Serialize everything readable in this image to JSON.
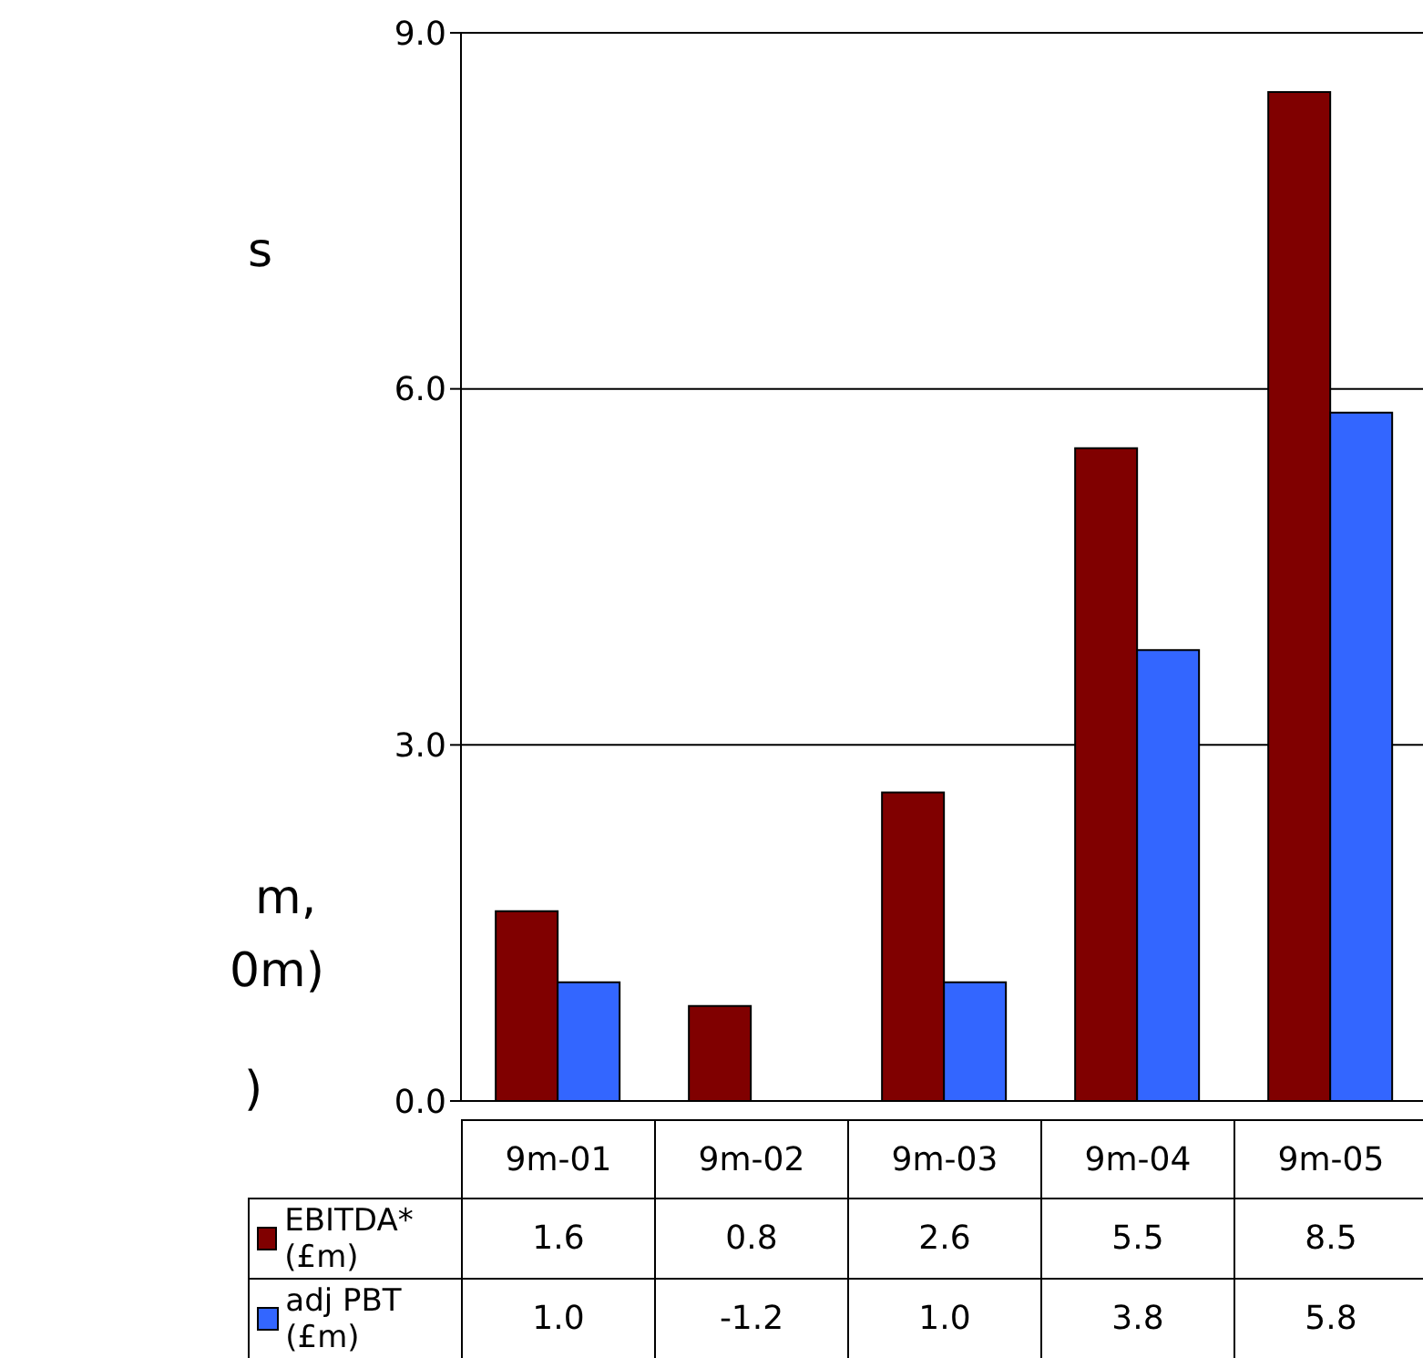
{
  "chart_data": {
    "type": "bar",
    "categories": [
      "9m-01",
      "9m-02",
      "9m-03",
      "9m-04",
      "9m-05"
    ],
    "series": [
      {
        "name": "EBITDA* (£m)",
        "color": "#800000",
        "values": [
          1.6,
          0.8,
          2.6,
          5.5,
          8.5
        ],
        "value_labels": [
          "1.6",
          "0.8",
          "2.6",
          "5.5",
          "8.5"
        ]
      },
      {
        "name": "adj PBT (£m)",
        "color": "#3366ff",
        "values": [
          1.0,
          null,
          1.0,
          3.8,
          5.8
        ],
        "value_labels": [
          "1.0",
          "-1.2",
          "1.0",
          "3.8",
          "5.8"
        ]
      }
    ],
    "ylim": [
      0,
      9
    ],
    "yticks": [
      {
        "value": 0,
        "label": "0.0"
      },
      {
        "value": 3,
        "label": "3.0"
      },
      {
        "value": 6,
        "label": "6.0"
      },
      {
        "value": 9,
        "label": "9.0"
      }
    ],
    "grid": "y",
    "legend": "bottom",
    "annotations": [
      "s",
      "m,",
      "0m)",
      ")"
    ]
  }
}
